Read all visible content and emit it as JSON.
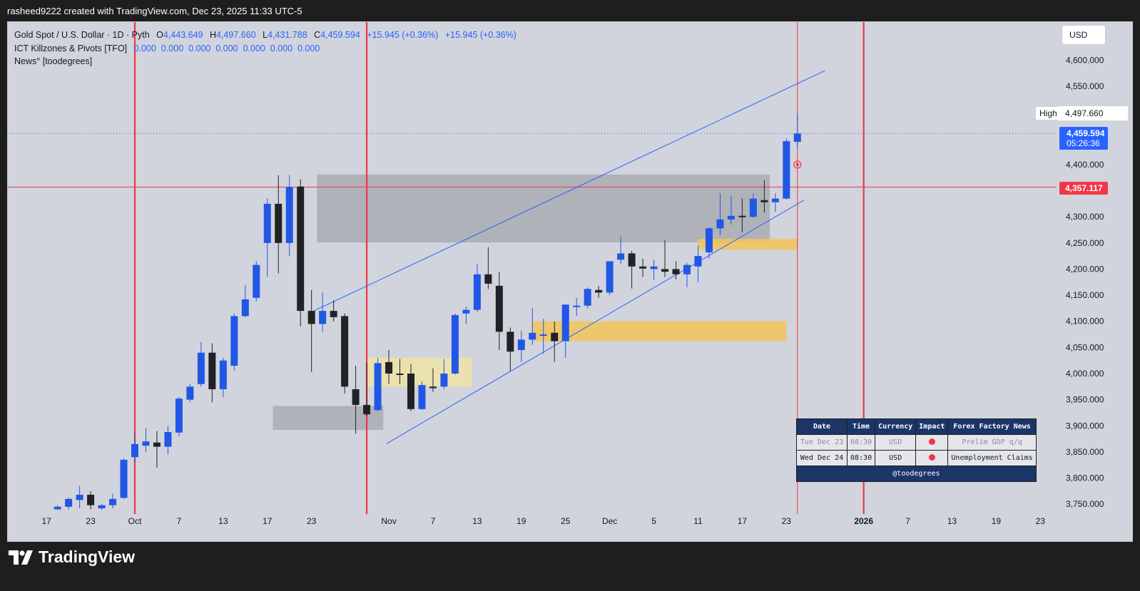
{
  "header": {
    "attribution": "rasheed9222 created with TradingView.com, Dec 23, 2025 11:33 UTC-5"
  },
  "legend": {
    "symbol": "Gold Spot / U.S. Dollar · 1D · Pyth",
    "ohlc_o_label": "O",
    "ohlc_o": "4,443.649",
    "ohlc_h_label": "H",
    "ohlc_h": "4,497.660",
    "ohlc_l_label": "L",
    "ohlc_l": "4,431.788",
    "ohlc_c_label": "C",
    "ohlc_c": "4,459.594",
    "change": "+15.945 (+0.36%)",
    "change_2": "+15.945 (+0.36%)",
    "indicator_1_name": "ICT Killzones & Pivots [TFO]",
    "indicator_1_values": "0.000  0.000  0.000  0.000  0.000  0.000  0.000",
    "indicator_2_name": "News° [toodegrees]"
  },
  "price_scale": {
    "currency": "USD",
    "high_label": "High",
    "high_value": "4,497.660",
    "last_price": "4,459.594",
    "countdown": "05:26:36",
    "line_price": "4,357.117"
  },
  "colors": {
    "up": "#2157e6",
    "down": "#202226",
    "background": "#d1d4dc",
    "vertical_line": "#f23645",
    "channel": "#2962ff",
    "zone_gray": "#a9abb1",
    "zone_yellow": "#f2c35a",
    "zone_pale": "#ece2a6"
  },
  "news_table": {
    "headers": [
      "Date",
      "Time",
      "Currency",
      "Impact",
      "Forex Factory News"
    ],
    "rows": [
      {
        "date": "Tue Dec 23",
        "time": "08:30",
        "currency": "USD",
        "impact": "high",
        "title": "Prelim GDP q/q"
      },
      {
        "date": "Wed Dec 24",
        "time": "08:30",
        "currency": "USD",
        "impact": "high",
        "title": "Unemployment Claims"
      }
    ],
    "footer": "@toodegrees"
  },
  "branding": {
    "logo_text": "TradingView"
  },
  "chart_data": {
    "type": "candlestick",
    "symbol": "XAUUSD",
    "timeframe": "1D",
    "y_ticks": [
      3750,
      3800,
      3850,
      3900,
      3950,
      4000,
      4050,
      4100,
      4150,
      4200,
      4250,
      4300,
      4350,
      4400,
      4450,
      4500,
      4550,
      4600
    ],
    "y_tick_labels_shown": [
      "3,750.000",
      "3,800.000",
      "3,850.000",
      "3,900.000",
      "3,950.000",
      "4,000.000",
      "4,050.000",
      "4,100.000",
      "4,150.000",
      "4,200.000",
      "4,250.000",
      "4,300.000",
      "",
      "4,400.000",
      "",
      "",
      "4,550.000",
      "4,600.000"
    ],
    "ylim": [
      3740,
      4640
    ],
    "x_labels": [
      {
        "bar": -8,
        "label": "17"
      },
      {
        "bar": -4,
        "label": "23"
      },
      {
        "bar": 0,
        "label": "Oct"
      },
      {
        "bar": 4,
        "label": "7"
      },
      {
        "bar": 8,
        "label": "13"
      },
      {
        "bar": 12,
        "label": "17"
      },
      {
        "bar": 16,
        "label": "23"
      },
      {
        "bar": 23,
        "label": "Nov"
      },
      {
        "bar": 27,
        "label": "7"
      },
      {
        "bar": 31,
        "label": "13"
      },
      {
        "bar": 35,
        "label": "19"
      },
      {
        "bar": 39,
        "label": "25"
      },
      {
        "bar": 43,
        "label": "Dec"
      },
      {
        "bar": 47,
        "label": "5"
      },
      {
        "bar": 51,
        "label": "11"
      },
      {
        "bar": 55,
        "label": "17"
      },
      {
        "bar": 59,
        "label": "23"
      },
      {
        "bar": 66,
        "label": "2026",
        "bold": true
      },
      {
        "bar": 70,
        "label": "7"
      },
      {
        "bar": 74,
        "label": "13"
      },
      {
        "bar": 78,
        "label": "19"
      },
      {
        "bar": 82,
        "label": "23"
      }
    ],
    "candles": [
      {
        "o": 3740,
        "h": 3748,
        "l": 3736,
        "c": 3745
      },
      {
        "o": 3745,
        "h": 3763,
        "l": 3738,
        "c": 3760
      },
      {
        "o": 3758,
        "h": 3785,
        "l": 3742,
        "c": 3768
      },
      {
        "o": 3768,
        "h": 3775,
        "l": 3740,
        "c": 3748
      },
      {
        "o": 3742,
        "h": 3750,
        "l": 3735,
        "c": 3748
      },
      {
        "o": 3748,
        "h": 3770,
        "l": 3742,
        "c": 3760
      },
      {
        "o": 3762,
        "h": 3838,
        "l": 3760,
        "c": 3835
      },
      {
        "o": 3840,
        "h": 3885,
        "l": 3830,
        "c": 3865
      },
      {
        "o": 3862,
        "h": 3895,
        "l": 3850,
        "c": 3870
      },
      {
        "o": 3868,
        "h": 3890,
        "l": 3820,
        "c": 3860
      },
      {
        "o": 3860,
        "h": 3900,
        "l": 3845,
        "c": 3888
      },
      {
        "o": 3887,
        "h": 3955,
        "l": 3880,
        "c": 3952
      },
      {
        "o": 3950,
        "h": 3980,
        "l": 3945,
        "c": 3975
      },
      {
        "o": 3980,
        "h": 4060,
        "l": 3975,
        "c": 4040
      },
      {
        "o": 4040,
        "h": 4058,
        "l": 3945,
        "c": 3970
      },
      {
        "o": 3970,
        "h": 4030,
        "l": 3955,
        "c": 4025
      },
      {
        "o": 4015,
        "h": 4115,
        "l": 4005,
        "c": 4110
      },
      {
        "o": 4110,
        "h": 4170,
        "l": 4108,
        "c": 4142
      },
      {
        "o": 4145,
        "h": 4215,
        "l": 4138,
        "c": 4208
      },
      {
        "o": 4250,
        "h": 4335,
        "l": 4185,
        "c": 4325
      },
      {
        "o": 4325,
        "h": 4380,
        "l": 4192,
        "c": 4250
      },
      {
        "o": 4250,
        "h": 4380,
        "l": 4225,
        "c": 4357
      },
      {
        "o": 4358,
        "h": 4372,
        "l": 4090,
        "c": 4120
      },
      {
        "o": 4120,
        "h": 4160,
        "l": 4003,
        "c": 4095
      },
      {
        "o": 4095,
        "h": 4155,
        "l": 4080,
        "c": 4120
      },
      {
        "o": 4120,
        "h": 4140,
        "l": 4100,
        "c": 4108
      },
      {
        "o": 4110,
        "h": 4115,
        "l": 3962,
        "c": 3975
      },
      {
        "o": 3970,
        "h": 4015,
        "l": 3885,
        "c": 3940
      },
      {
        "o": 3940,
        "h": 4020,
        "l": 3918,
        "c": 3922
      },
      {
        "o": 3930,
        "h": 4030,
        "l": 3928,
        "c": 4020
      },
      {
        "o": 4022,
        "h": 4045,
        "l": 3980,
        "c": 4000
      },
      {
        "o": 4000,
        "h": 4028,
        "l": 3980,
        "c": 3998
      },
      {
        "o": 4000,
        "h": 4018,
        "l": 3928,
        "c": 3932
      },
      {
        "o": 3932,
        "h": 3985,
        "l": 3930,
        "c": 3978
      },
      {
        "o": 3975,
        "h": 4010,
        "l": 3965,
        "c": 3972
      },
      {
        "o": 3975,
        "h": 4028,
        "l": 3970,
        "c": 4000
      },
      {
        "o": 4000,
        "h": 4115,
        "l": 3998,
        "c": 4112
      },
      {
        "o": 4115,
        "h": 4128,
        "l": 4095,
        "c": 4122
      },
      {
        "o": 4122,
        "h": 4210,
        "l": 4118,
        "c": 4190
      },
      {
        "o": 4190,
        "h": 4242,
        "l": 4162,
        "c": 4172
      },
      {
        "o": 4168,
        "h": 4195,
        "l": 4045,
        "c": 4080
      },
      {
        "o": 4080,
        "h": 4088,
        "l": 4005,
        "c": 4042
      },
      {
        "o": 4045,
        "h": 4082,
        "l": 4022,
        "c": 4065
      },
      {
        "o": 4065,
        "h": 4125,
        "l": 4055,
        "c": 4078
      },
      {
        "o": 4075,
        "h": 4105,
        "l": 4038,
        "c": 4075
      },
      {
        "o": 4078,
        "h": 4100,
        "l": 4022,
        "c": 4062
      },
      {
        "o": 4062,
        "h": 4132,
        "l": 4030,
        "c": 4132
      },
      {
        "o": 4128,
        "h": 4145,
        "l": 4110,
        "c": 4130
      },
      {
        "o": 4130,
        "h": 4165,
        "l": 4125,
        "c": 4162
      },
      {
        "o": 4160,
        "h": 4168,
        "l": 4145,
        "c": 4155
      },
      {
        "o": 4155,
        "h": 4215,
        "l": 4150,
        "c": 4215
      },
      {
        "o": 4218,
        "h": 4262,
        "l": 4210,
        "c": 4230
      },
      {
        "o": 4230,
        "h": 4235,
        "l": 4163,
        "c": 4205
      },
      {
        "o": 4205,
        "h": 4220,
        "l": 4185,
        "c": 4201
      },
      {
        "o": 4200,
        "h": 4218,
        "l": 4180,
        "c": 4205
      },
      {
        "o": 4200,
        "h": 4255,
        "l": 4185,
        "c": 4195
      },
      {
        "o": 4200,
        "h": 4215,
        "l": 4180,
        "c": 4190
      },
      {
        "o": 4190,
        "h": 4212,
        "l": 4165,
        "c": 4208
      },
      {
        "o": 4205,
        "h": 4245,
        "l": 4175,
        "c": 4225
      },
      {
        "o": 4232,
        "h": 4280,
        "l": 4220,
        "c": 4278
      },
      {
        "o": 4278,
        "h": 4345,
        "l": 4265,
        "c": 4295
      },
      {
        "o": 4295,
        "h": 4340,
        "l": 4285,
        "c": 4302
      },
      {
        "o": 4302,
        "h": 4335,
        "l": 4270,
        "c": 4301
      },
      {
        "o": 4300,
        "h": 4345,
        "l": 4298,
        "c": 4335
      },
      {
        "o": 4332,
        "h": 4370,
        "l": 4308,
        "c": 4328
      },
      {
        "o": 4328,
        "h": 4345,
        "l": 4310,
        "c": 4335
      },
      {
        "o": 4335,
        "h": 4450,
        "l": 4333,
        "c": 4445
      },
      {
        "o": 4443.649,
        "h": 4497.66,
        "l": 4431.788,
        "c": 4459.594
      }
    ],
    "zones": [
      {
        "type": "gray",
        "x0": 16.5,
        "x1": 57.5,
        "y0": 4251,
        "y1": 4381
      },
      {
        "type": "gray",
        "x0": 12.5,
        "x1": 22.5,
        "y0": 3892,
        "y1": 3938
      },
      {
        "type": "pale",
        "x0": 21,
        "x1": 30.5,
        "y0": 3975,
        "y1": 4030
      },
      {
        "type": "yellow",
        "x0": 36,
        "x1": 59,
        "y0": 4062,
        "y1": 4100
      },
      {
        "type": "yellow",
        "x0": 51,
        "x1": 60,
        "y0": 4237,
        "y1": 4258
      }
    ],
    "channel": [
      {
        "x0": 16.2,
        "y0": 4120,
        "x1": 62.5,
        "y1": 4580
      },
      {
        "x0": 22.8,
        "y0": 3866,
        "x1": 60.6,
        "y1": 4332
      }
    ],
    "vertical_lines_bars": [
      0,
      21
    ],
    "vertical_line_thin_bar": 60,
    "vertical_line_2026_bar": 66,
    "horizontal_line": 4357.117,
    "last_price_line": 4459.594,
    "event_marker_price": 4400
  }
}
